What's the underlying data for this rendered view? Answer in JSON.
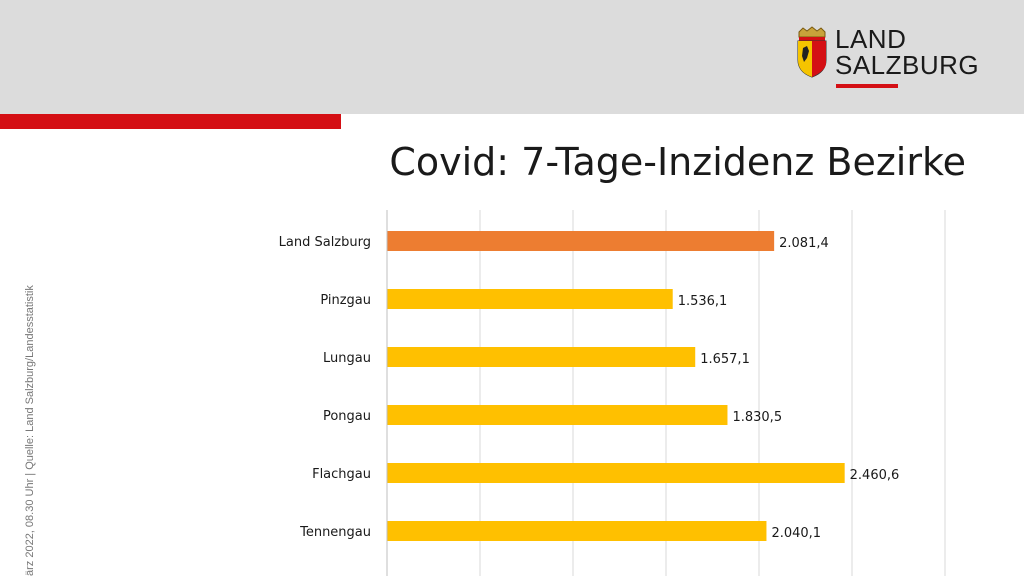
{
  "header": {
    "logo_line1": "LAND",
    "logo_line2": "SALZBURG"
  },
  "side_note": "ärz 2022, 08.30 Uhr | Quelle: Land Salzburg/Landesstatistik",
  "colors": {
    "header_bg": "#dcdcdc",
    "accent_red": "#d40f14",
    "highlight_bar": "#ed7d31",
    "bar": "#ffc000",
    "grid": "#d9d9d9"
  },
  "chart_data": {
    "type": "bar",
    "orientation": "horizontal",
    "title": "Covid: 7-Tage-Inzidenz Bezirke",
    "categories": [
      "Land Salzburg",
      "Pinzgau",
      "Lungau",
      "Pongau",
      "Flachgau",
      "Tennengau"
    ],
    "values": [
      2081.4,
      1536.1,
      1657.1,
      1830.5,
      2460.6,
      2040.1
    ],
    "data_labels": [
      "2.081,4",
      "1.536,1",
      "1.657,1",
      "1.830,5",
      "2.460,6",
      "2.040,1"
    ],
    "highlight_index": 0,
    "xlim": [
      0,
      3000
    ],
    "grid": true,
    "legend": "none",
    "xlabel": "",
    "ylabel": ""
  }
}
